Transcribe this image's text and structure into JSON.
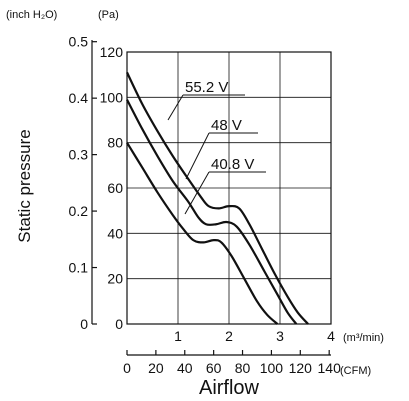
{
  "chart_data": {
    "type": "line",
    "xlabel": "Airflow",
    "ylabel": "Static pressure",
    "x_unit_top": "(m³/min)",
    "x_unit_bottom": "(CFM)",
    "y_unit_left": "(inch H₂O)",
    "y_unit_right": "(Pa)",
    "xlim": [
      0,
      4
    ],
    "ylim": [
      0,
      120
    ],
    "x_ticks": [
      1,
      2,
      3,
      4
    ],
    "x_ticks_cfm": [
      0,
      20,
      40,
      60,
      80,
      100,
      120,
      140
    ],
    "y_ticks_pa": [
      0,
      20,
      40,
      60,
      80,
      100,
      120
    ],
    "y_ticks_inch": [
      0,
      0.1,
      0.2,
      0.3,
      0.4,
      0.5
    ],
    "y_tick_inch_labels": [
      "0",
      "0.1",
      "0.2",
      "0.3",
      "0.4",
      "0.5"
    ],
    "grid": true,
    "series": [
      {
        "name": "55.2 V",
        "x": [
          0,
          0.3,
          0.6,
          0.9,
          1.2,
          1.45,
          1.6,
          1.8,
          2.0,
          2.2,
          2.4,
          2.65,
          2.9,
          3.15,
          3.35,
          3.55
        ],
        "y": [
          111,
          97,
          85,
          74,
          64,
          56,
          52,
          51,
          52,
          51,
          44,
          33,
          22,
          12,
          5,
          0
        ]
      },
      {
        "name": "48 V",
        "x": [
          0,
          0.3,
          0.6,
          0.9,
          1.2,
          1.4,
          1.55,
          1.75,
          1.95,
          2.15,
          2.4,
          2.7,
          2.95,
          3.15,
          3.32
        ],
        "y": [
          99,
          86,
          74,
          63,
          54,
          47,
          44,
          44,
          45,
          43,
          35,
          23,
          13,
          5,
          0
        ]
      },
      {
        "name": "40.8 V",
        "x": [
          0,
          0.3,
          0.6,
          0.9,
          1.1,
          1.3,
          1.5,
          1.7,
          1.85,
          2.05,
          2.3,
          2.55,
          2.75,
          2.95
        ],
        "y": [
          80,
          69,
          58,
          48,
          42,
          37,
          36,
          37,
          36,
          30,
          20,
          10,
          4,
          0
        ]
      }
    ]
  }
}
